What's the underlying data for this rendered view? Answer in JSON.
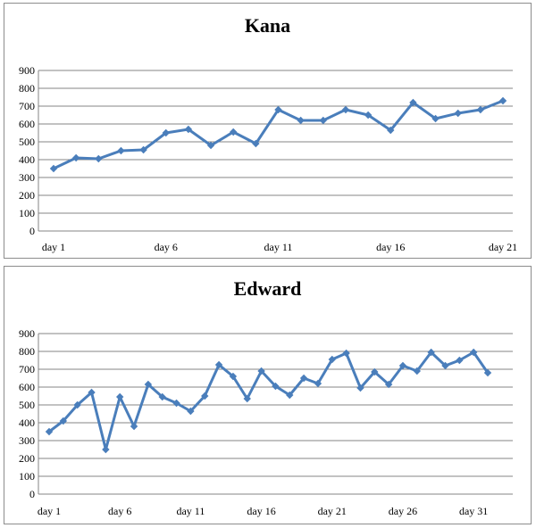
{
  "colors": {
    "line": "#4a7ebb",
    "grid": "#868686",
    "axis": "#868686"
  },
  "chart_data": [
    {
      "type": "line",
      "title": "Kana",
      "categories": [
        "day 1",
        "day 2",
        "day 3",
        "day 4",
        "day 5",
        "day 6",
        "day 7",
        "day 8",
        "day 9",
        "day 10",
        "day 11",
        "day 12",
        "day 13",
        "day 14",
        "day 15",
        "day 16",
        "day 17",
        "day 18",
        "day 19",
        "day 20",
        "day 21"
      ],
      "tick_labels": [
        "day 1",
        "day 6",
        "day 11",
        "day 16",
        "day 21"
      ],
      "series": [
        {
          "values": [
            350,
            410,
            405,
            450,
            455,
            550,
            570,
            480,
            555,
            490,
            680,
            620,
            620,
            680,
            650,
            565,
            720,
            630,
            660,
            680,
            730
          ]
        }
      ],
      "ylim": [
        0,
        900
      ],
      "yticks": [
        0,
        100,
        200,
        300,
        400,
        500,
        600,
        700,
        800,
        900
      ],
      "grid": true
    },
    {
      "type": "line",
      "title": "Edward",
      "categories": [
        "day 1",
        "day 2",
        "day 3",
        "day 4",
        "day 5",
        "day 6",
        "day 7",
        "day 8",
        "day 9",
        "day 10",
        "day 11",
        "day 12",
        "day 13",
        "day 14",
        "day 15",
        "day 16",
        "day 17",
        "day 18",
        "day 19",
        "day 20",
        "day 21",
        "day 22",
        "day 23",
        "day 24",
        "day 25",
        "day 26",
        "day 27",
        "day 28",
        "day 29",
        "day 30",
        "day 31",
        "day 32"
      ],
      "tick_labels": [
        "day 1",
        "day 6",
        "day 11",
        "day 16",
        "day 21",
        "day 26",
        "day 31"
      ],
      "series": [
        {
          "values": [
            350,
            410,
            500,
            570,
            250,
            545,
            380,
            615,
            545,
            510,
            465,
            550,
            725,
            660,
            535,
            690,
            605,
            555,
            650,
            620,
            755,
            790,
            595,
            685,
            615,
            720,
            690,
            795,
            720,
            750,
            795,
            680
          ]
        }
      ],
      "ylim": [
        0,
        900
      ],
      "yticks": [
        0,
        100,
        200,
        300,
        400,
        500,
        600,
        700,
        800,
        900
      ],
      "grid": true
    }
  ]
}
